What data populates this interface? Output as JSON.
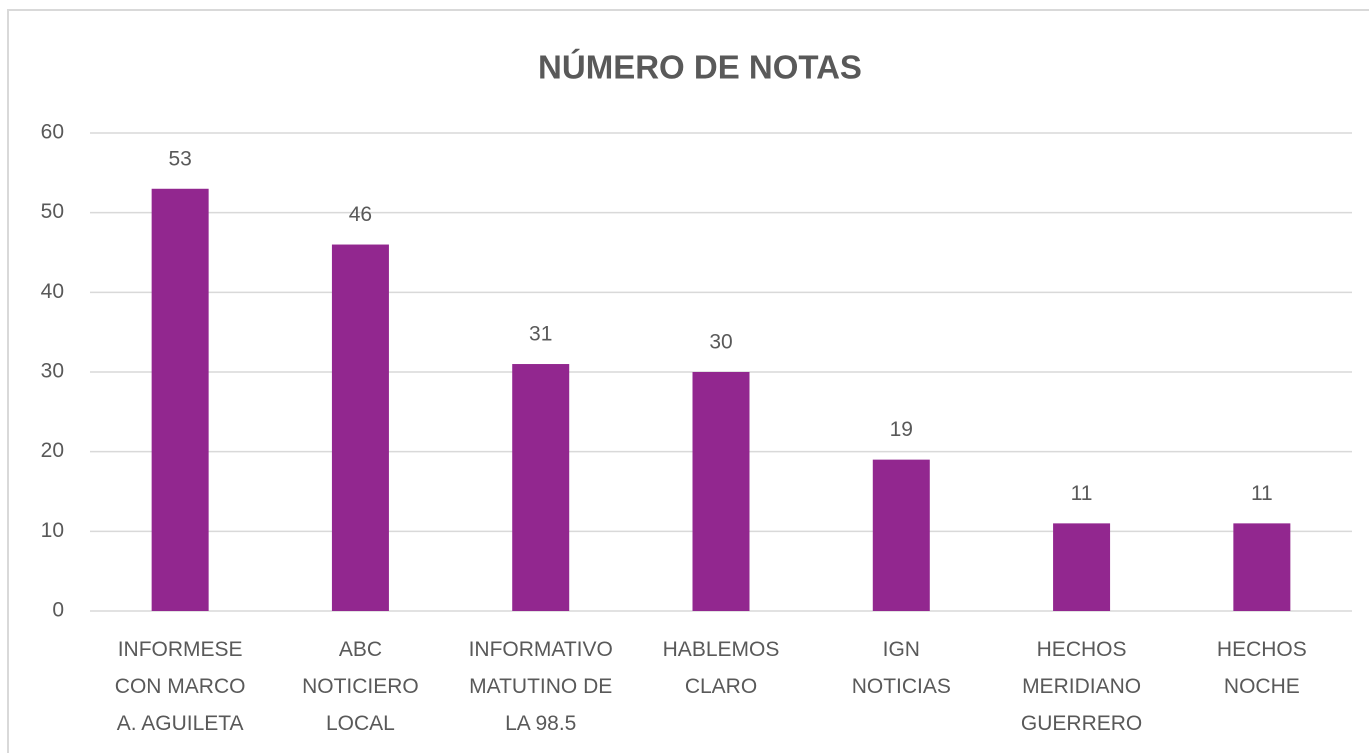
{
  "chart_data": {
    "type": "bar",
    "title": "NÚMERO DE NOTAS",
    "categories": [
      "INFORMESE CON MARCO A. AGUILETA",
      "ABC NOTICIERO LOCAL",
      "INFORMATIVO MATUTINO DE LA 98.5",
      "HABLEMOS CLARO",
      "IGN NOTICIAS",
      "HECHOS MERIDIANO GUERRERO",
      "HECHOS NOCHE"
    ],
    "values": [
      53,
      46,
      31,
      30,
      19,
      11,
      11
    ],
    "color": "#92278f",
    "ylim": [
      0,
      60
    ],
    "yticks": [
      0,
      10,
      20,
      30,
      40,
      50,
      60
    ],
    "grid": true
  }
}
